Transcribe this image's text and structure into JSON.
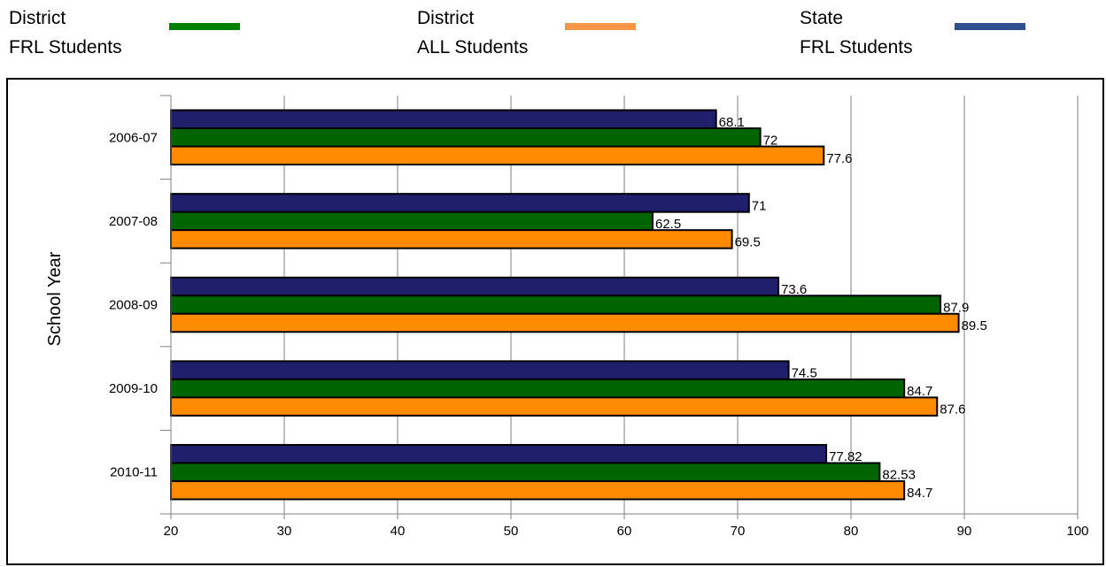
{
  "legend": [
    {
      "line1": "District",
      "line2": "FRL Students",
      "color": "#008000"
    },
    {
      "line1": "District",
      "line2": "ALL Students",
      "color": "#F79646"
    },
    {
      "line1": "State",
      "line2": "FRL Students",
      "color": "#2F4F8F"
    }
  ],
  "chart_data": {
    "type": "bar",
    "orientation": "horizontal",
    "categories": [
      "2006-07",
      "2007-08",
      "2008-09",
      "2009-10",
      "2010-11"
    ],
    "series": [
      {
        "name": "State FRL Students",
        "color": "#1F1F6B",
        "values": [
          68.1,
          71,
          73.6,
          74.5,
          77.82
        ],
        "labels": [
          "68.1",
          "71",
          "73.6",
          "74.5",
          "77.82"
        ]
      },
      {
        "name": "District FRL Students",
        "color": "#006400",
        "values": [
          72,
          62.5,
          87.9,
          84.7,
          82.53
        ],
        "labels": [
          "72",
          "62.5",
          "87.9",
          "84.7",
          "82.53"
        ]
      },
      {
        "name": "District ALL Students",
        "color": "#FF8C00",
        "values": [
          77.6,
          69.5,
          89.5,
          87.6,
          84.7
        ],
        "labels": [
          "77.6",
          "69.5",
          "89.5",
          "87.6",
          "84.7"
        ]
      }
    ],
    "xlim": [
      20,
      100
    ],
    "xticks": [
      "20",
      "30",
      "40",
      "50",
      "60",
      "70",
      "80",
      "90",
      "100"
    ],
    "ylabel": "School Year",
    "grid": "vertical"
  }
}
